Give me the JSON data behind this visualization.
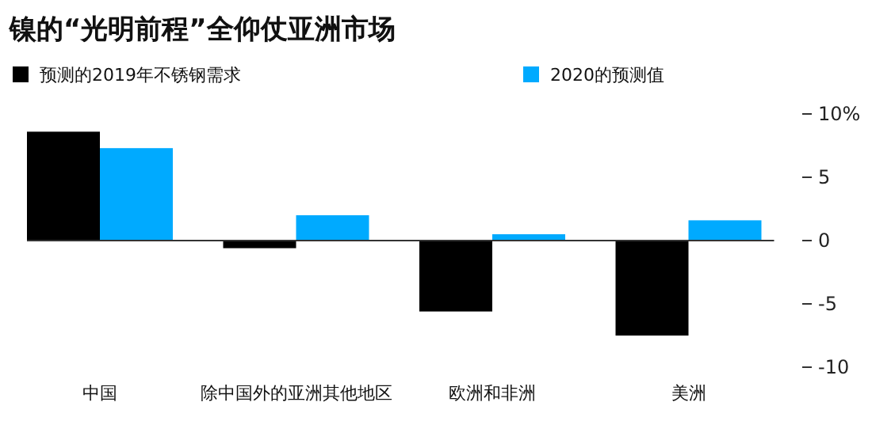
{
  "chart_data": {
    "type": "bar",
    "title": "镍的“光明前程”全仰仗亚洲市场",
    "categories": [
      "中国",
      "除中国外的亚洲其他地区",
      "欧洲和非洲",
      "美洲"
    ],
    "series": [
      {
        "name": "预测的2019年不锈钢需求",
        "color": "#000000",
        "values": [
          8.6,
          -0.6,
          -5.6,
          -7.5
        ]
      },
      {
        "name": "2020的预测值",
        "color": "#00aaff",
        "values": [
          7.3,
          2.0,
          0.5,
          1.6
        ]
      }
    ],
    "ylim": [
      -10,
      10
    ],
    "yticks": [
      {
        "value": -10,
        "label": "-10"
      },
      {
        "value": -5,
        "label": "-5"
      },
      0,
      5,
      {
        "value": 10,
        "label": "10%"
      }
    ],
    "legend": "top"
  }
}
